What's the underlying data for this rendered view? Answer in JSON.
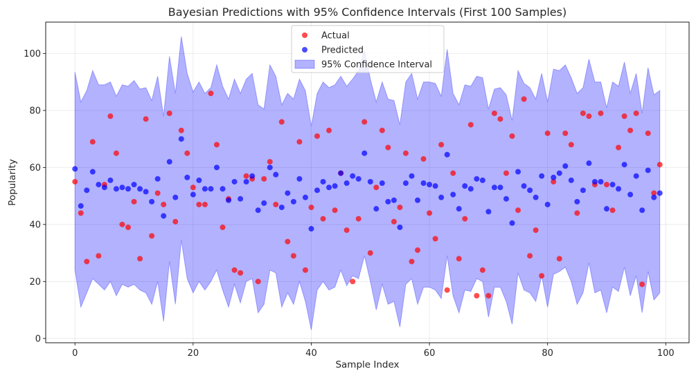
{
  "chart_data": {
    "type": "scatter",
    "title": "Bayesian Predictions with 95% Confidence Intervals (First 100 Samples)",
    "xlabel": "Sample Index",
    "ylabel": "Popularity",
    "xlim": [
      -4.95,
      103.95
    ],
    "ylim": [
      -1.5,
      111
    ],
    "xticks": [
      0,
      20,
      40,
      60,
      80,
      100
    ],
    "yticks": [
      0,
      20,
      40,
      60,
      80,
      100
    ],
    "grid": true,
    "legend_position": "top-center",
    "series": [
      {
        "name": "Actual",
        "kind": "scatter",
        "color": "#ff0000",
        "x": [
          0,
          1,
          2,
          3,
          4,
          5,
          6,
          7,
          8,
          9,
          10,
          11,
          12,
          13,
          14,
          15,
          16,
          17,
          18,
          19,
          20,
          21,
          22,
          23,
          24,
          25,
          26,
          27,
          28,
          29,
          30,
          31,
          32,
          33,
          34,
          35,
          36,
          37,
          38,
          39,
          40,
          41,
          42,
          43,
          44,
          45,
          46,
          47,
          48,
          49,
          50,
          51,
          52,
          53,
          54,
          55,
          56,
          57,
          58,
          59,
          60,
          61,
          62,
          63,
          64,
          65,
          66,
          67,
          68,
          69,
          70,
          71,
          72,
          73,
          74,
          75,
          76,
          77,
          78,
          79,
          80,
          81,
          82,
          83,
          84,
          85,
          86,
          87,
          88,
          89,
          90,
          91,
          92,
          93,
          94,
          95,
          96,
          97,
          98,
          99
        ],
        "values": [
          55,
          44,
          27,
          69,
          29,
          54,
          78,
          65,
          40,
          39,
          48,
          28,
          77,
          36,
          51,
          47,
          79,
          41,
          73,
          65,
          53,
          47,
          47,
          86,
          68,
          39,
          49,
          24,
          23,
          57,
          56,
          20,
          56,
          62,
          47,
          76,
          34,
          29,
          69,
          24,
          46,
          71,
          42,
          73,
          45,
          58,
          38,
          20,
          42,
          76,
          30,
          53,
          73,
          67,
          41,
          46,
          65,
          27,
          31,
          63,
          44,
          35,
          68,
          17,
          58,
          28,
          42,
          75,
          15,
          24,
          15,
          79,
          77,
          58,
          71,
          45,
          84,
          29,
          38,
          22,
          72,
          55,
          28,
          72,
          68,
          44,
          79,
          78,
          54,
          79,
          54,
          45,
          67,
          78,
          73,
          79,
          19,
          72,
          51,
          61
        ]
      },
      {
        "name": "Predicted",
        "kind": "scatter",
        "color": "#0000ff",
        "x": [
          0,
          1,
          2,
          3,
          4,
          5,
          6,
          7,
          8,
          9,
          10,
          11,
          12,
          13,
          14,
          15,
          16,
          17,
          18,
          19,
          20,
          21,
          22,
          23,
          24,
          25,
          26,
          27,
          28,
          29,
          30,
          31,
          32,
          33,
          34,
          35,
          36,
          37,
          38,
          39,
          40,
          41,
          42,
          43,
          44,
          45,
          46,
          47,
          48,
          49,
          50,
          51,
          52,
          53,
          54,
          55,
          56,
          57,
          58,
          59,
          60,
          61,
          62,
          63,
          64,
          65,
          66,
          67,
          68,
          69,
          70,
          71,
          72,
          73,
          74,
          75,
          76,
          77,
          78,
          79,
          80,
          81,
          82,
          83,
          84,
          85,
          86,
          87,
          88,
          89,
          90,
          91,
          92,
          93,
          94,
          95,
          96,
          97,
          98,
          99
        ],
        "values": [
          59.5,
          46.5,
          52,
          58.5,
          54,
          53,
          55.5,
          52.5,
          53,
          52.5,
          54,
          52.5,
          51.5,
          48,
          56,
          43,
          62,
          49.5,
          70,
          56.5,
          50.5,
          55.5,
          52.5,
          52.5,
          60,
          52.5,
          48.5,
          55,
          49,
          55,
          57,
          45,
          47.5,
          60,
          57.5,
          46,
          51,
          48,
          56,
          49.5,
          38.5,
          52,
          55,
          53,
          53.5,
          58,
          54.5,
          57,
          56,
          65,
          55,
          45.5,
          54.5,
          48,
          48.5,
          39,
          54.5,
          57,
          48.5,
          54.5,
          54,
          53.5,
          49.5,
          64.5,
          50.5,
          45.5,
          53.5,
          52.5,
          56,
          55.5,
          44.5,
          53,
          53,
          49,
          40.5,
          58.5,
          53.5,
          52,
          49.5,
          57,
          47,
          56.5,
          58,
          60.5,
          55.5,
          48,
          52,
          61.5,
          55,
          55,
          45.5,
          54,
          52.5,
          61,
          50.5,
          57,
          45,
          59,
          49.5,
          51
        ]
      },
      {
        "name": "95% Confidence Interval",
        "kind": "band",
        "color": "#0000ff",
        "x": [
          0,
          1,
          2,
          3,
          4,
          5,
          6,
          7,
          8,
          9,
          10,
          11,
          12,
          13,
          14,
          15,
          16,
          17,
          18,
          19,
          20,
          21,
          22,
          23,
          24,
          25,
          26,
          27,
          28,
          29,
          30,
          31,
          32,
          33,
          34,
          35,
          36,
          37,
          38,
          39,
          40,
          41,
          42,
          43,
          44,
          45,
          46,
          47,
          48,
          49,
          50,
          51,
          52,
          53,
          54,
          55,
          56,
          57,
          58,
          59,
          60,
          61,
          62,
          63,
          64,
          65,
          66,
          67,
          68,
          69,
          70,
          71,
          72,
          73,
          74,
          75,
          76,
          77,
          78,
          79,
          80,
          81,
          82,
          83,
          84,
          85,
          86,
          87,
          88,
          89,
          90,
          91,
          92,
          93,
          94,
          95,
          96,
          97,
          98,
          99
        ],
        "upper": [
          93.5,
          83,
          87,
          94,
          89,
          89,
          90,
          85,
          89,
          88.5,
          90.5,
          87.5,
          88,
          83.5,
          92,
          78,
          99,
          86,
          106,
          93,
          86.5,
          90,
          86,
          88,
          96,
          88.5,
          84,
          91,
          86,
          91,
          93,
          82,
          80.5,
          96,
          92,
          82,
          86,
          84,
          91,
          87,
          74.5,
          86,
          90,
          88,
          89,
          92,
          88.5,
          91,
          94,
          101,
          91,
          83,
          90,
          84,
          83.5,
          75,
          90,
          93,
          84,
          90,
          90,
          89.5,
          85,
          101.5,
          86,
          82,
          89,
          88.5,
          92,
          91.5,
          80.5,
          87.5,
          88,
          85.5,
          76.5,
          94,
          89.5,
          88,
          84,
          93,
          83,
          94.5,
          94,
          96,
          91.5,
          86,
          88,
          98,
          90,
          90,
          81,
          90,
          88.5,
          97,
          86,
          93,
          79,
          95,
          85.5,
          87
        ],
        "lower": [
          24,
          11,
          16,
          21,
          19,
          17,
          20,
          15,
          19,
          18,
          19,
          17,
          16,
          12,
          20,
          6,
          27,
          12,
          34.5,
          21,
          16,
          20,
          17,
          20,
          24,
          17,
          11,
          19,
          12.5,
          20,
          21,
          9,
          12,
          24,
          23,
          11,
          16,
          12,
          20,
          13,
          3,
          17,
          20,
          17,
          18,
          24,
          18.5,
          22,
          21,
          29,
          20,
          10,
          19,
          12,
          13,
          4,
          19,
          21,
          12,
          18,
          18,
          17,
          14,
          29,
          15,
          9,
          17,
          16.5,
          21,
          20,
          7.5,
          18,
          18,
          13,
          5,
          23,
          17,
          16,
          13,
          22,
          11,
          22.5,
          23.5,
          25,
          20,
          12,
          16,
          26.5,
          16,
          17,
          9,
          18,
          16.5,
          25,
          15,
          22,
          9,
          23.5,
          13.5,
          16
        ]
      }
    ],
    "legend": {
      "entries": [
        "Actual",
        "Predicted",
        "95% Confidence Interval"
      ]
    }
  }
}
